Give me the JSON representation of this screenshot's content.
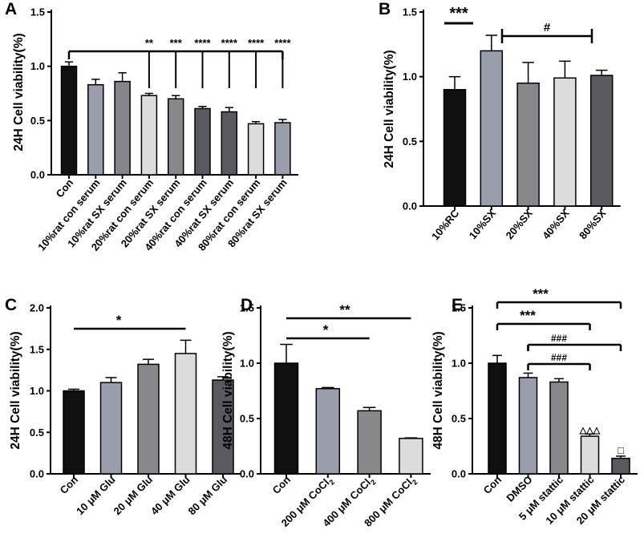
{
  "colors": {
    "black": "#101010",
    "bluegray": "#9a9eac",
    "mid": "#85858b",
    "dark": "#595a60",
    "light": "#dcdcdc",
    "gray": "#88888b"
  },
  "chart_data": [
    {
      "panel": "A",
      "type": "bar",
      "ylabel": "24H Cell viability(%)",
      "ylim": [
        0,
        1.5
      ],
      "yticks": [
        "0.0",
        "0.5",
        "1.0",
        "1.5"
      ],
      "categories": [
        "Con",
        "10%rat con serum",
        "10%rat SX serum",
        "20%rat con serum",
        "20%rat SX serum",
        "40%rat con serum",
        "40%rat SX serum",
        "80%rat con serum",
        "80%rat SX serum"
      ],
      "values": [
        1.0,
        0.83,
        0.86,
        0.73,
        0.7,
        0.61,
        0.58,
        0.47,
        0.48
      ],
      "errors": [
        0.04,
        0.05,
        0.08,
        0.02,
        0.03,
        0.02,
        0.04,
        0.02,
        0.03
      ],
      "colors": [
        "black",
        "bluegray",
        "mid",
        "light",
        "gray",
        "dark",
        "dark",
        "light",
        "bluegray"
      ],
      "significance": [
        "",
        "",
        "",
        "**",
        "***",
        "****",
        "****",
        "****",
        "****"
      ]
    },
    {
      "panel": "B",
      "type": "bar",
      "ylabel": "24H Cell viability(%)",
      "ylim": [
        0,
        1.5
      ],
      "yticks": [
        "0.0",
        "0.5",
        "1.0",
        "1.5"
      ],
      "categories": [
        "10%RC",
        "10%SX",
        "20%SX",
        "40%SX",
        "80%SX"
      ],
      "values": [
        0.9,
        1.2,
        0.95,
        0.99,
        1.01
      ],
      "errors": [
        0.1,
        0.12,
        0.16,
        0.13,
        0.04
      ],
      "colors": [
        "black",
        "bluegray",
        "gray",
        "light",
        "dark"
      ],
      "annotations": [
        "***",
        "#"
      ]
    },
    {
      "panel": "C",
      "type": "bar",
      "ylabel": "24H Cell viability(%)",
      "ylim": [
        0,
        2.0
      ],
      "yticks": [
        "0.0",
        "0.5",
        "1.0",
        "1.5",
        "2.0"
      ],
      "categories": [
        "Con",
        "10 μM Glu",
        "20 μM Glu",
        "40 μM Glu",
        "80 μM Glu"
      ],
      "values": [
        1.0,
        1.1,
        1.32,
        1.45,
        1.13
      ],
      "errors": [
        0.02,
        0.06,
        0.06,
        0.16,
        0.04
      ],
      "colors": [
        "black",
        "bluegray",
        "gray",
        "light",
        "dark"
      ],
      "annotations": [
        "*"
      ]
    },
    {
      "panel": "D",
      "type": "bar",
      "ylabel": "48H Cell viability(%)",
      "ylim": [
        0,
        1.5
      ],
      "yticks": [
        "0.0",
        "0.5",
        "1.0",
        "1.5"
      ],
      "categories": [
        "Con",
        "200 μM CoCl",
        "400 μM CoCl",
        "800 μM CoCl"
      ],
      "subscript": "2",
      "values": [
        1.0,
        0.77,
        0.57,
        0.32
      ],
      "errors": [
        0.17,
        0.01,
        0.03,
        0.005
      ],
      "colors": [
        "black",
        "bluegray",
        "gray",
        "light"
      ],
      "annotations": [
        "*",
        "**"
      ]
    },
    {
      "panel": "E",
      "type": "bar",
      "ylabel": "48H Cell viability(%)",
      "ylim": [
        0,
        1.5
      ],
      "yticks": [
        "0.0",
        "0.5",
        "1.0",
        "1.5"
      ],
      "categories": [
        "Con",
        "DMSO",
        "5 μM stattic",
        "10 μM stattic",
        "20 μM stattic"
      ],
      "values": [
        1.0,
        0.87,
        0.83,
        0.34,
        0.14
      ],
      "errors": [
        0.07,
        0.04,
        0.03,
        0.02,
        0.02
      ],
      "colors": [
        "black",
        "bluegray",
        "gray",
        "light",
        "dark"
      ],
      "annotations": [
        "***",
        "***",
        "###",
        "###",
        "△△△",
        "□"
      ]
    }
  ]
}
